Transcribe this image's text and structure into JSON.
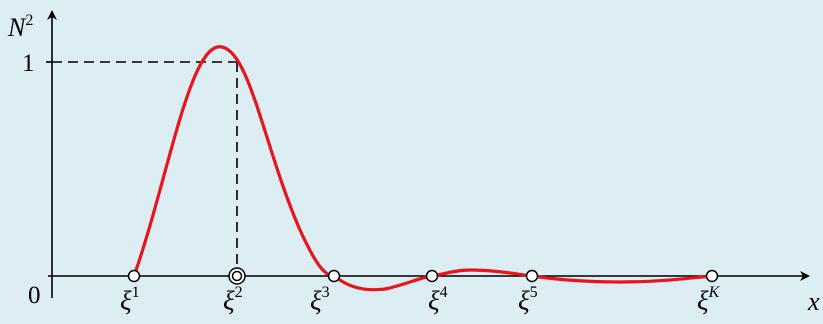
{
  "colors": {
    "background": "#dcedf4",
    "curve": "#e8141c",
    "axis": "#000000",
    "marker_fill": "#ffffff"
  },
  "axes": {
    "y_label_base": "N",
    "y_label_sup": "2",
    "x_label": "x",
    "origin_label": "0",
    "y_tick_one_label": "1"
  },
  "nodes": [
    {
      "id": "xi1",
      "base": "ξ",
      "sup": "1",
      "marker": "open-circle"
    },
    {
      "id": "xi2",
      "base": "ξ",
      "sup": "2",
      "marker": "double-circle"
    },
    {
      "id": "xi3",
      "base": "ξ",
      "sup": "3",
      "marker": "open-circle"
    },
    {
      "id": "xi4",
      "base": "ξ",
      "sup": "4",
      "marker": "open-circle"
    },
    {
      "id": "xi5",
      "base": "ξ",
      "sup": "5",
      "marker": "open-circle"
    },
    {
      "id": "xiK",
      "base": "ξ",
      "sup": "K",
      "marker": "open-circle"
    }
  ]
}
